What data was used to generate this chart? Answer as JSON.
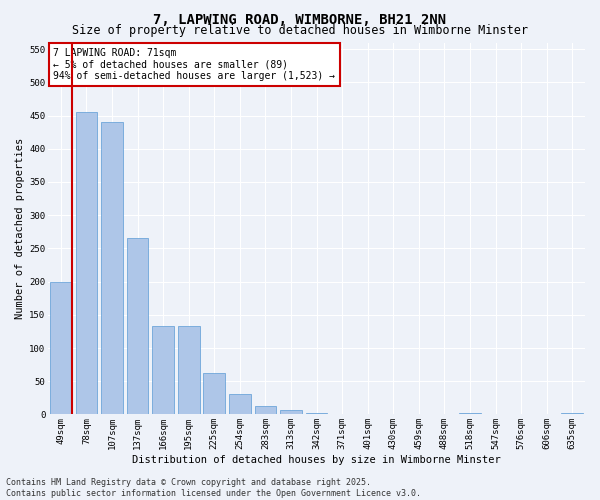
{
  "title": "7, LAPWING ROAD, WIMBORNE, BH21 2NN",
  "subtitle": "Size of property relative to detached houses in Wimborne Minster",
  "xlabel": "Distribution of detached houses by size in Wimborne Minster",
  "ylabel": "Number of detached properties",
  "categories": [
    "49sqm",
    "78sqm",
    "107sqm",
    "137sqm",
    "166sqm",
    "195sqm",
    "225sqm",
    "254sqm",
    "283sqm",
    "313sqm",
    "342sqm",
    "371sqm",
    "401sqm",
    "430sqm",
    "459sqm",
    "488sqm",
    "518sqm",
    "547sqm",
    "576sqm",
    "606sqm",
    "635sqm"
  ],
  "values": [
    200,
    455,
    440,
    265,
    133,
    133,
    62,
    30,
    12,
    7,
    2,
    1,
    1,
    0,
    0,
    0,
    2,
    0,
    0,
    0,
    2
  ],
  "bar_color": "#aec6e8",
  "bar_edge_color": "#5b9bd5",
  "highlight_color": "#cc0000",
  "annotation_text": "7 LAPWING ROAD: 71sqm\n← 5% of detached houses are smaller (89)\n94% of semi-detached houses are larger (1,523) →",
  "annotation_box_facecolor": "#ffffff",
  "annotation_box_edgecolor": "#cc0000",
  "ylim": [
    0,
    560
  ],
  "yticks": [
    0,
    50,
    100,
    150,
    200,
    250,
    300,
    350,
    400,
    450,
    500,
    550
  ],
  "footer_line1": "Contains HM Land Registry data © Crown copyright and database right 2025.",
  "footer_line2": "Contains public sector information licensed under the Open Government Licence v3.0.",
  "bg_color": "#eef2f9",
  "plot_bg_color": "#eef2f9",
  "grid_color": "#ffffff",
  "title_fontsize": 10,
  "subtitle_fontsize": 8.5,
  "axis_label_fontsize": 7.5,
  "tick_fontsize": 6.5,
  "annotation_fontsize": 7,
  "footer_fontsize": 6
}
